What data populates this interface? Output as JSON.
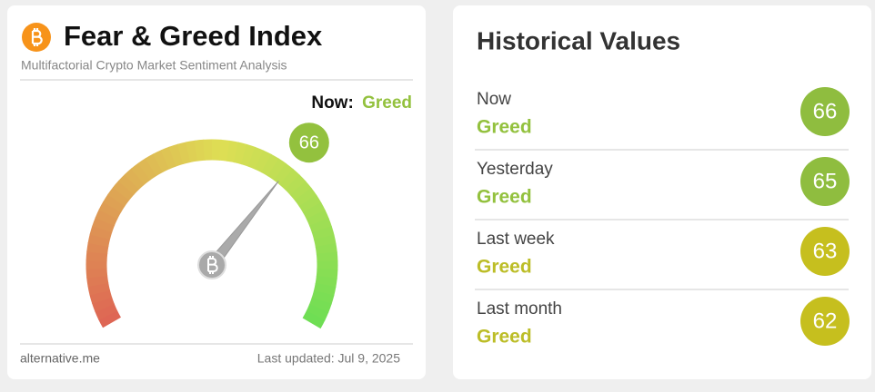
{
  "header": {
    "title": "Fear & Greed Index",
    "subtitle": "Multifactorial Crypto Market Sentiment Analysis",
    "now_label": "Now:",
    "now_classification": "Greed",
    "now_color": "#93c13e"
  },
  "gauge": {
    "value": 66,
    "lim": [
      0,
      100
    ],
    "color": "#93c13e"
  },
  "footer": {
    "source": "alternative.me",
    "updated": "Last updated: Jul 9, 2025"
  },
  "history": {
    "title": "Historical Values",
    "rows": [
      {
        "period": "Now",
        "classification": "Greed",
        "value": 66,
        "color": "#8fbd3f",
        "text_color": "#93c13e"
      },
      {
        "period": "Yesterday",
        "classification": "Greed",
        "value": 65,
        "color": "#8fbd3f",
        "text_color": "#93c13e"
      },
      {
        "period": "Last week",
        "classification": "Greed",
        "value": 63,
        "color": "#c6bf1e",
        "text_color": "#bcbd27"
      },
      {
        "period": "Last month",
        "classification": "Greed",
        "value": 62,
        "color": "#c6bf1e",
        "text_color": "#bcbd27"
      }
    ]
  }
}
